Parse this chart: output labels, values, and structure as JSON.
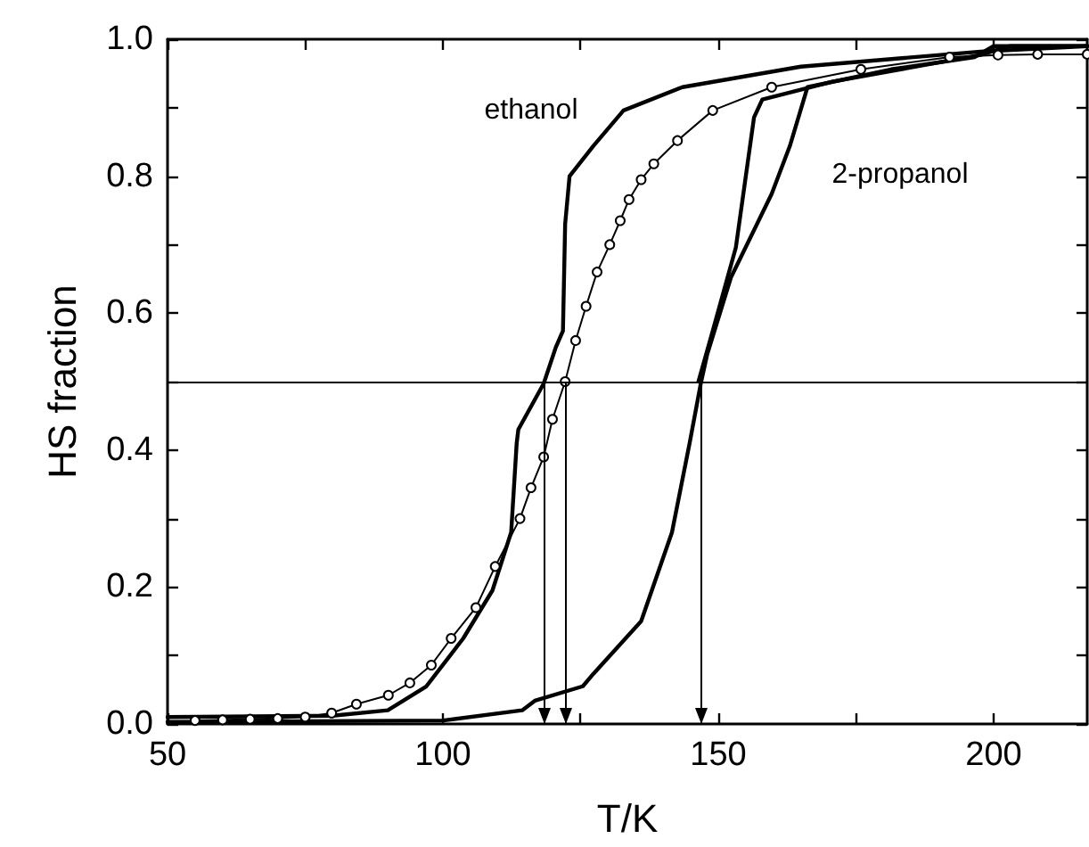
{
  "chart_data": {
    "type": "line",
    "xlabel": "T/K",
    "ylabel": "HS fraction",
    "xlim": [
      50,
      217
    ],
    "ylim": [
      0,
      1
    ],
    "xticks": [
      50,
      {
        "value": 75,
        "label": null
      },
      100,
      {
        "value": 125,
        "label": null
      },
      150,
      {
        "value": 175,
        "label": null
      },
      200
    ],
    "yticks": [
      {
        "value": 0,
        "label": "0.0"
      },
      {
        "value": 0.1,
        "label": null
      },
      {
        "value": 0.2,
        "label": "0.2"
      },
      {
        "value": 0.3,
        "label": null
      },
      {
        "value": 0.4,
        "label": "0.4"
      },
      {
        "value": 0.5,
        "label": null
      },
      {
        "value": 0.6,
        "label": "0.6"
      },
      {
        "value": 0.7,
        "label": null
      },
      {
        "value": 0.8,
        "label": "0.8"
      },
      {
        "value": 0.9,
        "label": null
      },
      {
        "value": 1,
        "label": "1.0"
      }
    ],
    "grid": false,
    "legend": false,
    "series": [
      {
        "name": "ethanol",
        "color": "#000000",
        "marker": "none",
        "x": [
          50,
          80,
          90,
          97,
          103.7,
          109,
          112.4,
          113.4,
          113.7,
          118.3,
          120.5,
          121.8,
          122.2,
          123,
          127.3,
          132.8,
          143.5,
          165,
          197.6,
          217
        ],
        "values": [
          0.01,
          0.012,
          0.02,
          0.055,
          0.125,
          0.195,
          0.28,
          0.41,
          0.43,
          0.497,
          0.55,
          0.574,
          0.73,
          0.8,
          0.844,
          0.896,
          0.93,
          0.96,
          0.982,
          0.99
        ]
      },
      {
        "color": "#000000",
        "marker": "circle",
        "x": [
          55,
          60,
          65,
          70,
          75,
          79.8,
          84.3,
          90.1,
          94,
          97.9,
          101.5,
          106,
          109.5,
          114,
          116,
          118.3,
          119.9,
          122.2,
          124.1,
          126,
          128,
          130.3,
          132.2,
          133.8,
          136,
          138.3,
          142.6,
          149,
          159.7,
          175.9,
          192,
          200.8,
          208,
          217
        ],
        "values": [
          0.005,
          0.006,
          0.007,
          0.008,
          0.01,
          0.016,
          0.029,
          0.042,
          0.06,
          0.086,
          0.125,
          0.17,
          0.23,
          0.3,
          0.345,
          0.39,
          0.445,
          0.5,
          0.56,
          0.61,
          0.66,
          0.7,
          0.735,
          0.766,
          0.795,
          0.818,
          0.852,
          0.896,
          0.93,
          0.956,
          0.974,
          0.977,
          0.978,
          0.978
        ]
      },
      {
        "name": "2-propanol",
        "color": "#000000",
        "marker": "none",
        "x": [
          50,
          100,
          114.4,
          116.7,
          125.4,
          127.3,
          136,
          141.6,
          144.8,
          146.8,
          148,
          152.3,
          159.7,
          163,
          166.2,
          181.4,
          196.6,
          200,
          217
        ],
        "values": [
          0.003,
          0.005,
          0.02,
          0.034,
          0.055,
          0.073,
          0.15,
          0.28,
          0.41,
          0.496,
          0.54,
          0.652,
          0.774,
          0.844,
          0.93,
          0.956,
          0.974,
          0.99,
          0.99
        ]
      },
      {
        "color": "#000000",
        "marker": "none",
        "x": [
          146.4,
          149,
          153.2,
          156.5,
          158,
          170.7,
          197.6,
          203,
          217
        ],
        "values": [
          0.5,
          0.574,
          0.696,
          0.886,
          0.912,
          0.938,
          0.977,
          0.99,
          0.99
        ]
      }
    ],
    "ref_lines": [
      {
        "axis": "y",
        "value": 0.5
      },
      {
        "axis": "x",
        "value": 118.3
      },
      {
        "axis": "x",
        "value": 122.2
      },
      {
        "axis": "x",
        "value": 147
      }
    ]
  }
}
